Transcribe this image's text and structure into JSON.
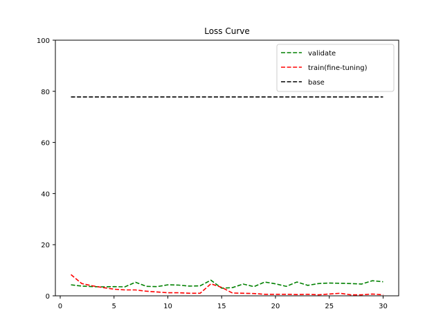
{
  "chart_data": {
    "type": "line",
    "title": "Loss Curve",
    "xlabel": "",
    "ylabel": "",
    "xlim": [
      -0.45,
      31.45
    ],
    "ylim": [
      0,
      100
    ],
    "xticks": [
      0,
      5,
      10,
      15,
      20,
      25,
      30
    ],
    "yticks": [
      0,
      20,
      40,
      60,
      80,
      100
    ],
    "grid": false,
    "legend_position": "top-right",
    "x": [
      1,
      2,
      3,
      4,
      5,
      6,
      7,
      8,
      9,
      10,
      11,
      12,
      13,
      14,
      15,
      16,
      17,
      18,
      19,
      20,
      21,
      22,
      23,
      24,
      25,
      26,
      27,
      28,
      29,
      30
    ],
    "series": [
      {
        "name": "validate",
        "color": "#008000",
        "linestyle": "dashed",
        "values": [
          4.3,
          3.8,
          3.6,
          3.5,
          3.6,
          3.5,
          5.3,
          3.7,
          3.6,
          4.3,
          4.2,
          3.8,
          3.9,
          6.1,
          3.0,
          3.2,
          4.6,
          3.6,
          5.4,
          4.7,
          3.7,
          5.4,
          4.1,
          4.8,
          5.0,
          4.9,
          4.8,
          4.6,
          5.9,
          5.5
        ]
      },
      {
        "name": "train(fine-tuning)",
        "color": "#ff0000",
        "linestyle": "dashed",
        "values": [
          8.3,
          4.8,
          3.9,
          3.2,
          2.6,
          2.3,
          2.3,
          1.8,
          1.5,
          1.2,
          1.2,
          1.0,
          1.0,
          4.7,
          3.3,
          1.1,
          1.0,
          0.9,
          0.6,
          0.6,
          0.6,
          0.5,
          0.6,
          0.4,
          0.7,
          1.0,
          0.4,
          0.4,
          0.7,
          0.4
        ]
      },
      {
        "name": "base",
        "color": "#000000",
        "linestyle": "dashed",
        "values": [
          77.8,
          77.8,
          77.8,
          77.8,
          77.8,
          77.8,
          77.8,
          77.8,
          77.8,
          77.8,
          77.8,
          77.8,
          77.8,
          77.8,
          77.8,
          77.8,
          77.8,
          77.8,
          77.8,
          77.8,
          77.8,
          77.8,
          77.8,
          77.8,
          77.8,
          77.8,
          77.8,
          77.8,
          77.8,
          77.8
        ]
      }
    ]
  }
}
